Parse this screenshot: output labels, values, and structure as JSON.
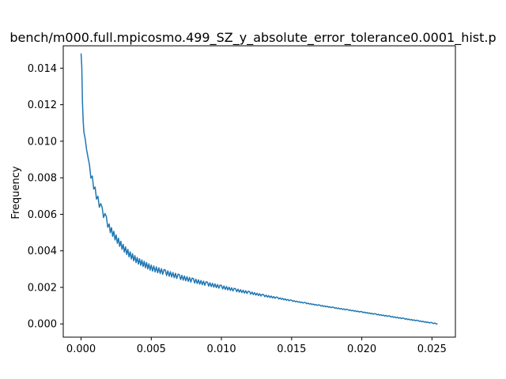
{
  "chart_data": {
    "type": "line",
    "title": "bench/m000.full.mpicosmo.499_SZ_y_absolute_error_tolerance0.0001_hist.p",
    "xlabel": "",
    "ylabel": "Frequency",
    "xlim": [
      -0.00127,
      0.02667
    ],
    "ylim": [
      -0.000725,
      0.015225
    ],
    "x_ticks": [
      0.0,
      0.005,
      0.01,
      0.015,
      0.02,
      0.025
    ],
    "x_tick_labels": [
      "0.000",
      "0.005",
      "0.010",
      "0.015",
      "0.020",
      "0.025"
    ],
    "y_ticks": [
      0.0,
      0.002,
      0.004,
      0.006,
      0.008,
      0.01,
      0.012,
      0.014
    ],
    "y_tick_labels": [
      "0.000",
      "0.002",
      "0.004",
      "0.006",
      "0.008",
      "0.010",
      "0.012",
      "0.014"
    ],
    "grid": false,
    "legend": "none",
    "series": [
      {
        "color": "#1f77b4",
        "x": [
          0.0,
          5e-05,
          0.0001,
          0.00015,
          0.0002,
          0.0003,
          0.0004,
          0.0005,
          0.0006,
          0.0008,
          0.001,
          0.0012,
          0.0015,
          0.0018,
          0.002,
          0.0025,
          0.003,
          0.0035,
          0.004,
          0.0045,
          0.005,
          0.006,
          0.007,
          0.008,
          0.009,
          0.01,
          0.011,
          0.012,
          0.013,
          0.014,
          0.015,
          0.016,
          0.017,
          0.018,
          0.019,
          0.02,
          0.021,
          0.022,
          0.023,
          0.024,
          0.025,
          0.0254
        ],
        "y": [
          0.0145,
          0.0138,
          0.0118,
          0.0108,
          0.0102,
          0.0098,
          0.0092,
          0.0088,
          0.0084,
          0.0078,
          0.0072,
          0.0067,
          0.0061,
          0.0056,
          0.0052,
          0.0046,
          0.0041,
          0.0037,
          0.0034,
          0.0032,
          0.003,
          0.00275,
          0.00252,
          0.00232,
          0.00214,
          0.00198,
          0.00182,
          0.00168,
          0.00153,
          0.0014,
          0.00126,
          0.00113,
          0.001,
          0.00088,
          0.00076,
          0.00064,
          0.00052,
          0.0004,
          0.00028,
          0.00016,
          4e-05,
          0.0
        ]
      }
    ]
  }
}
